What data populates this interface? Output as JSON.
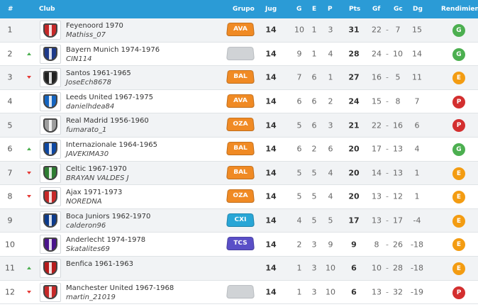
{
  "header": {
    "pos": "#",
    "club": "Club",
    "grupo": "Grupo",
    "jug": "Jug",
    "g": "G",
    "e": "E",
    "p": "P",
    "pts": "Pts",
    "gf": "Gf",
    "gc": "Gc",
    "dg": "Dg",
    "rend": "Rendimiento"
  },
  "colors": {
    "header_bg": "#2b9bd6",
    "rend_G": "#4caf50",
    "rend_E": "#f39c12",
    "rend_P": "#d32f2f",
    "group_orange": "#f08a24",
    "group_cyan": "#29a6d6",
    "group_purple": "#5a4fc7",
    "group_empty": "#d0d3d6"
  },
  "rows": [
    {
      "pos": "1",
      "trend": "",
      "club": "Feyenoord 1970",
      "user": "Mathiss_07",
      "grupo": "AVA",
      "grupo_color": "orange",
      "jug": "14",
      "g": "10",
      "e": "1",
      "p": "3",
      "pts": "31",
      "gf": "22",
      "gc": "7",
      "dg": "15",
      "rend": "G",
      "shield": "#c62828"
    },
    {
      "pos": "2",
      "trend": "up",
      "club": "Bayern Munich 1974-1976",
      "user": "CIN114",
      "grupo": "",
      "grupo_color": "empty",
      "jug": "14",
      "g": "9",
      "e": "1",
      "p": "4",
      "pts": "28",
      "gf": "24",
      "gc": "10",
      "dg": "14",
      "rend": "G",
      "shield": "#1e3a8a"
    },
    {
      "pos": "3",
      "trend": "down",
      "club": "Santos 1961-1965",
      "user": "JoseEch8678",
      "grupo": "BAL",
      "grupo_color": "orange",
      "jug": "14",
      "g": "7",
      "e": "6",
      "p": "1",
      "pts": "27",
      "gf": "16",
      "gc": "5",
      "dg": "11",
      "rend": "E",
      "shield": "#222222"
    },
    {
      "pos": "4",
      "trend": "",
      "club": "Leeds United 1967-1975",
      "user": "danielhdea84",
      "grupo": "AVA",
      "grupo_color": "orange",
      "jug": "14",
      "g": "6",
      "e": "6",
      "p": "2",
      "pts": "24",
      "gf": "15",
      "gc": "8",
      "dg": "7",
      "rend": "P",
      "shield": "#1565c0"
    },
    {
      "pos": "5",
      "trend": "",
      "club": "Real Madrid 1956-1960",
      "user": "fumarato_1",
      "grupo": "OZA",
      "grupo_color": "orange",
      "jug": "14",
      "g": "5",
      "e": "6",
      "p": "3",
      "pts": "21",
      "gf": "22",
      "gc": "16",
      "dg": "6",
      "rend": "P",
      "shield": "#9e9e9e"
    },
    {
      "pos": "6",
      "trend": "up",
      "club": "Internazionale 1964-1965",
      "user": "JAVEKIMA30",
      "grupo": "BAL",
      "grupo_color": "orange",
      "jug": "14",
      "g": "6",
      "e": "2",
      "p": "6",
      "pts": "20",
      "gf": "17",
      "gc": "13",
      "dg": "4",
      "rend": "G",
      "shield": "#0d47a1"
    },
    {
      "pos": "7",
      "trend": "down",
      "club": "Celtic 1967-1970",
      "user": "BRAYAN VALDES J",
      "grupo": "BAL",
      "grupo_color": "orange",
      "jug": "14",
      "g": "5",
      "e": "5",
      "p": "4",
      "pts": "20",
      "gf": "14",
      "gc": "13",
      "dg": "1",
      "rend": "E",
      "shield": "#2e7d32"
    },
    {
      "pos": "8",
      "trend": "down",
      "club": "Ajax 1971-1973",
      "user": "NOREDNA",
      "grupo": "OZA",
      "grupo_color": "orange",
      "jug": "14",
      "g": "5",
      "e": "5",
      "p": "4",
      "pts": "20",
      "gf": "13",
      "gc": "12",
      "dg": "1",
      "rend": "E",
      "shield": "#c62828"
    },
    {
      "pos": "9",
      "trend": "",
      "club": "Boca Juniors 1962-1970",
      "user": "calderon96",
      "grupo": "CXI",
      "grupo_color": "cyan",
      "jug": "14",
      "g": "4",
      "e": "5",
      "p": "5",
      "pts": "17",
      "gf": "13",
      "gc": "17",
      "dg": "-4",
      "rend": "E",
      "shield": "#0d3b8c"
    },
    {
      "pos": "10",
      "trend": "",
      "club": "Anderlecht 1974-1978",
      "user": "Skatalites69",
      "grupo": "TCS",
      "grupo_color": "purple",
      "jug": "14",
      "g": "2",
      "e": "3",
      "p": "9",
      "pts": "9",
      "gf": "8",
      "gc": "26",
      "dg": "-18",
      "rend": "E",
      "shield": "#4a148c"
    },
    {
      "pos": "11",
      "trend": "up",
      "club": "Benfica 1961-1963",
      "user": "",
      "grupo": "",
      "grupo_color": "none",
      "jug": "14",
      "g": "1",
      "e": "3",
      "p": "10",
      "pts": "6",
      "gf": "10",
      "gc": "28",
      "dg": "-18",
      "rend": "E",
      "shield": "#b71c1c"
    },
    {
      "pos": "12",
      "trend": "down",
      "club": "Manchester United 1967-1968",
      "user": "martin_21019",
      "grupo": "",
      "grupo_color": "empty",
      "jug": "14",
      "g": "1",
      "e": "3",
      "p": "10",
      "pts": "6",
      "gf": "13",
      "gc": "32",
      "dg": "-19",
      "rend": "P",
      "shield": "#c62828"
    }
  ]
}
